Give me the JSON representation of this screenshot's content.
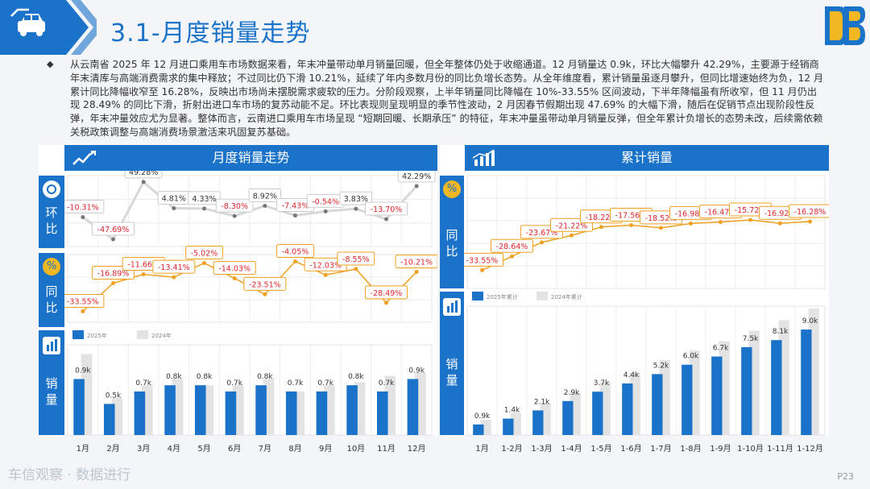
{
  "title": "3.1-月度销量走势",
  "summary": "从云南省 2025 年 12 月进口乘用车市场数据来看，年末冲量带动单月销量回暖，但全年整体仍处于收缩通道。12 月销量达 0.9k，环比大幅攀升 42.29%，主要源于经销商年末清库与高端消费需求的集中释放；不过同比仍下滑 10.21%，延续了年内多数月份的同比负增长态势。从全年维度看，累计销量虽逐月攀升，但同比增速始终为负，12 月累计同比降幅收窄至 16.28%，反映出市场尚未摆脱需求疲软的压力。分阶段观察，上半年销量同比降幅在 10%-33.55% 区间波动，下半年降幅虽有所收窄，但 11 月仍出现 28.49% 的同比下滑，折射出进口车市场的复苏动能不足。环比表现则呈现明显的季节性波动，2 月因春节假期出现 47.69% 的大幅下滑，随后在促销节点出现阶段性反弹，年末冲量效应尤为显著。整体而言，云南进口乘用车市场呈现 “短期回暖、长期承压” 的特征，年末冲量虽带动单月销量反弹，但全年累计负增长的态势未改，后续需依赖关税政策调整与高端消费场景激活来巩固复苏基础。",
  "left_panel": {
    "header": "月度销量走势",
    "side_mom": "环比",
    "side_yoy": "同比",
    "side_sales": "销量"
  },
  "right_panel": {
    "header": "累计销量",
    "side_yoy": "同比",
    "side_sales": "销量"
  },
  "watermark": "车信观察 · 数据进行",
  "page_number": "P23",
  "colors": {
    "primary": "#1a72c9",
    "orange": "#f0a020",
    "label_red": "#e0262c",
    "gray_bar": "#e3e3e3"
  },
  "chart_data": [
    {
      "id": "monthly_mom",
      "type": "line",
      "title": "环比",
      "categories": [
        "1月",
        "2月",
        "3月",
        "4月",
        "5月",
        "6月",
        "7月",
        "8月",
        "9月",
        "10月",
        "11月",
        "12月"
      ],
      "values": [
        -10.31,
        -47.69,
        49.28,
        4.81,
        4.33,
        -8.3,
        8.92,
        -7.43,
        -0.54,
        3.83,
        -13.7,
        42.29
      ],
      "labels": [
        "-10.31%",
        "-47.69%",
        "49.28%",
        "4.81%",
        "4.33%",
        "-8.30%",
        "8.92%",
        "-7.43%",
        "-0.54%",
        "3.83%",
        "-13.70%",
        "42.29%"
      ]
    },
    {
      "id": "monthly_yoy",
      "type": "line",
      "title": "同比",
      "categories": [
        "1月",
        "2月",
        "3月",
        "4月",
        "5月",
        "6月",
        "7月",
        "8月",
        "9月",
        "10月",
        "11月",
        "12月"
      ],
      "values": [
        -33.55,
        -16.89,
        -11.66,
        -13.41,
        -5.02,
        -14.03,
        -23.51,
        -4.05,
        -12.03,
        -8.55,
        -28.49,
        -10.21
      ],
      "labels": [
        "-33.55%",
        "-16.89%",
        "-11.66%",
        "-13.41%",
        "-5.02%",
        "-14.03%",
        "-23.51%",
        "-4.05%",
        "-12.03%",
        "-8.55%",
        "-28.49%",
        "-10.21%"
      ]
    },
    {
      "id": "monthly_sales",
      "type": "bar",
      "title": "销量",
      "categories": [
        "1月",
        "2月",
        "3月",
        "4月",
        "5月",
        "6月",
        "7月",
        "8月",
        "9月",
        "10月",
        "11月",
        "12月"
      ],
      "series": [
        {
          "name": "2025年",
          "values": [
            0.9,
            0.5,
            0.7,
            0.8,
            0.8,
            0.7,
            0.8,
            0.7,
            0.7,
            0.8,
            0.7,
            0.9
          ],
          "labels": [
            "0.9k",
            "0.5k",
            "0.7k",
            "0.8k",
            "0.8k",
            "0.7k",
            "0.8k",
            "0.7k",
            "0.7k",
            "0.8k",
            "0.7k",
            "0.9k"
          ]
        },
        {
          "name": "2024年",
          "values": [
            1.3,
            0.6,
            0.8,
            0.9,
            0.8,
            0.8,
            0.9,
            0.7,
            0.8,
            0.85,
            0.95,
            1.0
          ]
        }
      ]
    },
    {
      "id": "cumulative_yoy",
      "type": "line",
      "title": "同比",
      "categories": [
        "1月",
        "1-2月",
        "1-3月",
        "1-4月",
        "1-5月",
        "1-6月",
        "1-7月",
        "1-8月",
        "1-9月",
        "1-10月",
        "1-11月",
        "1-12月"
      ],
      "values": [
        -33.55,
        -28.64,
        -23.67,
        -21.22,
        -18.22,
        -17.56,
        -18.52,
        -16.98,
        -16.47,
        -15.72,
        -16.92,
        -16.28
      ],
      "labels": [
        "-33.55%",
        "-28.64%",
        "-23.67%",
        "-21.22%",
        "-18.22%",
        "-17.56%",
        "-18.52%",
        "-16.98%",
        "-16.47%",
        "-15.72%",
        "-16.92%",
        "-16.28%"
      ]
    },
    {
      "id": "cumulative_sales",
      "type": "bar",
      "title": "销量",
      "categories": [
        "1月",
        "1-2月",
        "1-3月",
        "1-4月",
        "1-5月",
        "1-6月",
        "1-7月",
        "1-8月",
        "1-9月",
        "1-10月",
        "1-11月",
        "1-12月"
      ],
      "series": [
        {
          "name": "2025年累计",
          "values": [
            0.9,
            1.4,
            2.1,
            2.9,
            3.7,
            4.4,
            5.2,
            6.0,
            6.7,
            7.5,
            8.1,
            9.0
          ],
          "labels": [
            "0.9k",
            "1.4k",
            "2.1k",
            "2.9k",
            "3.7k",
            "4.4k",
            "5.2k",
            "6.0k",
            "6.7k",
            "7.5k",
            "8.1k",
            "9.0k"
          ]
        },
        {
          "name": "2024年累计",
          "values": [
            1.3,
            1.9,
            2.7,
            3.6,
            4.5,
            5.3,
            6.4,
            7.2,
            8.0,
            8.9,
            9.8,
            10.8
          ]
        }
      ]
    }
  ]
}
